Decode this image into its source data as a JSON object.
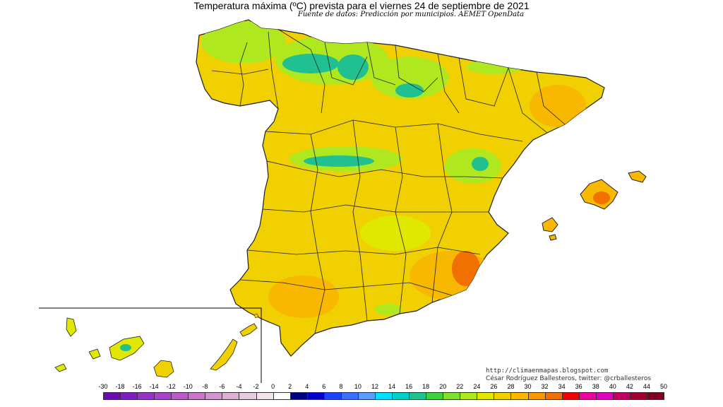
{
  "title": "Temperatura máxima (ºC) prevista para el viernes 24 de septiembre de 2021",
  "subtitle": "Fuente de datos: Predicción por municipios. AEMET OpenData",
  "credits": {
    "line1": "http://climaenmapas.blogspot.com",
    "line2": "César Rodríguez Ballesteros, twitter: @crballesteros"
  },
  "legend": {
    "labels": [
      "-30",
      "-18",
      "-16",
      "-14",
      "-12",
      "-10",
      "-8",
      "-6",
      "-4",
      "-2",
      "0",
      "2",
      "4",
      "6",
      "8",
      "10",
      "12",
      "14",
      "16",
      "18",
      "20",
      "22",
      "24",
      "26",
      "28",
      "30",
      "32",
      "34",
      "36",
      "38",
      "40",
      "42",
      "44",
      "50"
    ],
    "colors": [
      "#6a0dad",
      "#7d1fc0",
      "#9432c9",
      "#a844cc",
      "#bb5cc7",
      "#c976c9",
      "#d393cf",
      "#ddb0d6",
      "#e6cadf",
      "#f2e4ec",
      "#ffffff",
      "#000080",
      "#0000cd",
      "#1e40ff",
      "#3a6fff",
      "#5a9cff",
      "#00e0ff",
      "#00cfc8",
      "#20c090",
      "#40d040",
      "#80e030",
      "#b0e820",
      "#e0e800",
      "#f0d000",
      "#f8b800",
      "#f89800",
      "#f07000",
      "#f00000",
      "#f000a0",
      "#e000c0",
      "#c00060",
      "#a00030",
      "#800020"
    ]
  },
  "map_colors": {
    "base_yellow": "#f0d000",
    "warm_orange": "#f8b800",
    "hot_orange": "#f07000",
    "cool_green": "#b0e820",
    "cold_teal": "#20c090",
    "border": "#202020"
  }
}
